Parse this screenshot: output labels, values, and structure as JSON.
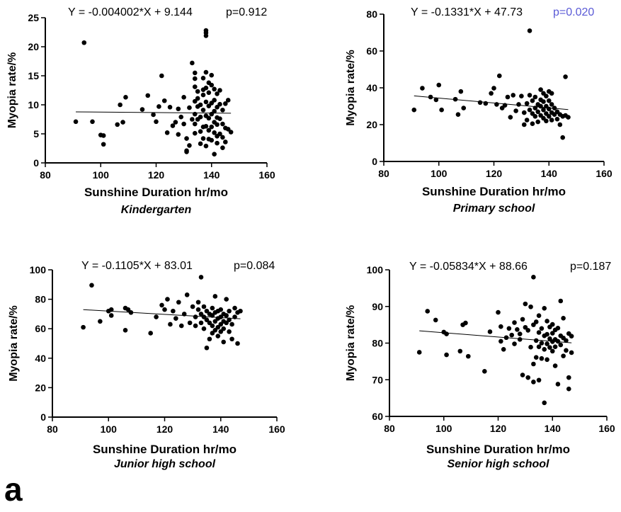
{
  "panel_label": "a",
  "colors": {
    "ink": "#000000",
    "p_highlight": "#5a5ad6"
  },
  "chart_data": [
    {
      "type": "scatter",
      "subtitle": "Kindergarten",
      "xlabel": "Sunshine Duration hr/mo",
      "ylabel": "Myopia rate/%",
      "equation": "Y = -0.004002*X + 9.144",
      "p_value": "p=0.912",
      "p_color": "#000000",
      "fit": {
        "slope": -0.004002,
        "intercept": 9.144,
        "x_range": [
          91,
          147
        ]
      },
      "xlim": [
        80,
        160
      ],
      "ylim": [
        0,
        25
      ],
      "xticks": [
        80,
        100,
        120,
        140,
        160
      ],
      "yticks": [
        0,
        5,
        10,
        15,
        20,
        25
      ],
      "points": [
        [
          91,
          7.1
        ],
        [
          94,
          20.7
        ],
        [
          97,
          7.1
        ],
        [
          100,
          4.8
        ],
        [
          101,
          4.7
        ],
        [
          101,
          3.2
        ],
        [
          106,
          6.6
        ],
        [
          107,
          10
        ],
        [
          108,
          7
        ],
        [
          109,
          11.3
        ],
        [
          115,
          9.2
        ],
        [
          117,
          11.6
        ],
        [
          119,
          8.3
        ],
        [
          120,
          7.1
        ],
        [
          121,
          9.7
        ],
        [
          122,
          15
        ],
        [
          123,
          10.7
        ],
        [
          124,
          5.2
        ],
        [
          125,
          9.6
        ],
        [
          126,
          6.4
        ],
        [
          127,
          7
        ],
        [
          128,
          9.3
        ],
        [
          128,
          4.9
        ],
        [
          129,
          7.9
        ],
        [
          130,
          6.7
        ],
        [
          130,
          11.3
        ],
        [
          131,
          2.1
        ],
        [
          131,
          4.2
        ],
        [
          131,
          1.9
        ],
        [
          132,
          9.5
        ],
        [
          132,
          3
        ],
        [
          133,
          7.5
        ],
        [
          133,
          17.2
        ],
        [
          134,
          15.5
        ],
        [
          134,
          14.5
        ],
        [
          134,
          13.1
        ],
        [
          134,
          10.6
        ],
        [
          134,
          8.4
        ],
        [
          134,
          6.7
        ],
        [
          134,
          5.1
        ],
        [
          135,
          12.3
        ],
        [
          135,
          11.1
        ],
        [
          135,
          9.7
        ],
        [
          135,
          7.5
        ],
        [
          136,
          10
        ],
        [
          136,
          7.9
        ],
        [
          136,
          5.4
        ],
        [
          136,
          3.3
        ],
        [
          137,
          14.6
        ],
        [
          137,
          12.6
        ],
        [
          137,
          11.7
        ],
        [
          137,
          9.1
        ],
        [
          137,
          6.2
        ],
        [
          137,
          4.2
        ],
        [
          138,
          22.8
        ],
        [
          138,
          22.4
        ],
        [
          138,
          21.9
        ],
        [
          138,
          15.6
        ],
        [
          138,
          12.9
        ],
        [
          138,
          10.5
        ],
        [
          138,
          8.1
        ],
        [
          138,
          6.3
        ],
        [
          138,
          2.9
        ],
        [
          139,
          13.8
        ],
        [
          139,
          12.1
        ],
        [
          139,
          9.8
        ],
        [
          139,
          7.7
        ],
        [
          139,
          5.6
        ],
        [
          139,
          4.1
        ],
        [
          140,
          15.1
        ],
        [
          140,
          13.4
        ],
        [
          140,
          10.3
        ],
        [
          140,
          8.4
        ],
        [
          140,
          6.2
        ],
        [
          140,
          3.9
        ],
        [
          141,
          12.7
        ],
        [
          141,
          10.8
        ],
        [
          141,
          8.9
        ],
        [
          141,
          7
        ],
        [
          141,
          5.2
        ],
        [
          141,
          1.5
        ],
        [
          142,
          11.9
        ],
        [
          142,
          9.6
        ],
        [
          142,
          7.8
        ],
        [
          142,
          6.6
        ],
        [
          142,
          4.6
        ],
        [
          142,
          3.4
        ],
        [
          143,
          12.5
        ],
        [
          143,
          10.1
        ],
        [
          143,
          7.6
        ],
        [
          143,
          5
        ],
        [
          144,
          9.1
        ],
        [
          144,
          6.7
        ],
        [
          144,
          4.4
        ],
        [
          144,
          2.6
        ],
        [
          145,
          10.2
        ],
        [
          145,
          6
        ],
        [
          145,
          3.6
        ],
        [
          146,
          10.8
        ],
        [
          146,
          5.8
        ],
        [
          147,
          5.3
        ]
      ]
    },
    {
      "type": "scatter",
      "subtitle": "Primary school",
      "xlabel": "Sunshine Duration hr/mo",
      "ylabel": "Myopia rate/%",
      "equation": "Y = -0.1331*X + 47.73",
      "p_value": "p=0.020",
      "p_color": "#5a5ad6",
      "fit": {
        "slope": -0.1331,
        "intercept": 47.73,
        "x_range": [
          91,
          147
        ]
      },
      "xlim": [
        80,
        160
      ],
      "ylim": [
        0,
        80
      ],
      "xticks": [
        80,
        100,
        120,
        140,
        160
      ],
      "yticks": [
        0,
        20,
        40,
        60,
        80
      ],
      "points": [
        [
          91,
          28
        ],
        [
          94,
          39.8
        ],
        [
          97,
          35
        ],
        [
          99,
          33.5
        ],
        [
          100,
          41.5
        ],
        [
          101,
          28
        ],
        [
          106,
          33.8
        ],
        [
          107,
          25.5
        ],
        [
          108,
          38
        ],
        [
          109,
          29
        ],
        [
          115,
          32
        ],
        [
          117,
          31.5
        ],
        [
          119,
          37
        ],
        [
          120,
          39.8
        ],
        [
          121,
          31
        ],
        [
          122,
          46.5
        ],
        [
          123,
          29
        ],
        [
          124,
          30.5
        ],
        [
          125,
          35
        ],
        [
          126,
          24
        ],
        [
          127,
          36
        ],
        [
          128,
          27.5
        ],
        [
          129,
          31
        ],
        [
          130,
          35.5
        ],
        [
          131,
          20
        ],
        [
          131,
          26.5
        ],
        [
          132,
          31.5
        ],
        [
          132,
          22.5
        ],
        [
          133,
          71
        ],
        [
          133,
          36
        ],
        [
          133,
          28
        ],
        [
          134,
          33
        ],
        [
          134,
          26
        ],
        [
          134,
          20.5
        ],
        [
          135,
          35
        ],
        [
          135,
          29
        ],
        [
          135,
          24.5
        ],
        [
          136,
          31
        ],
        [
          136,
          27
        ],
        [
          136,
          21.5
        ],
        [
          137,
          39
        ],
        [
          137,
          33.5
        ],
        [
          137,
          30
        ],
        [
          137,
          25
        ],
        [
          138,
          37
        ],
        [
          138,
          32.5
        ],
        [
          138,
          28
        ],
        [
          138,
          23.5
        ],
        [
          139,
          35.5
        ],
        [
          139,
          30
        ],
        [
          139,
          26
        ],
        [
          139,
          22
        ],
        [
          140,
          38
        ],
        [
          140,
          33
        ],
        [
          140,
          28.5
        ],
        [
          140,
          24.5
        ],
        [
          141,
          37
        ],
        [
          141,
          31
        ],
        [
          141,
          26.5
        ],
        [
          141,
          22.5
        ],
        [
          142,
          29
        ],
        [
          142,
          25.5
        ],
        [
          143,
          27
        ],
        [
          143,
          23
        ],
        [
          144,
          25.5
        ],
        [
          144,
          20
        ],
        [
          145,
          24.5
        ],
        [
          145,
          13
        ],
        [
          146,
          46
        ],
        [
          146,
          25
        ],
        [
          147,
          24
        ]
      ]
    },
    {
      "type": "scatter",
      "subtitle": "Junior high school",
      "xlabel": "Sunshine Duration hr/mo",
      "ylabel": "Myopia rate/%",
      "equation": "Y = -0.1105*X + 83.01",
      "p_value": "p=0.084",
      "p_color": "#000000",
      "fit": {
        "slope": -0.1105,
        "intercept": 83.01,
        "x_range": [
          91,
          147
        ]
      },
      "xlim": [
        80,
        160
      ],
      "ylim": [
        0,
        100
      ],
      "xticks": [
        80,
        100,
        120,
        140,
        160
      ],
      "yticks": [
        0,
        20,
        40,
        60,
        80,
        100
      ],
      "points": [
        [
          91,
          61
        ],
        [
          94,
          89.5
        ],
        [
          97,
          65
        ],
        [
          100,
          72
        ],
        [
          101,
          73
        ],
        [
          101,
          69
        ],
        [
          106,
          74
        ],
        [
          106,
          59
        ],
        [
          107,
          73
        ],
        [
          108,
          71
        ],
        [
          115,
          57
        ],
        [
          117,
          68
        ],
        [
          119,
          76
        ],
        [
          120,
          73
        ],
        [
          121,
          80
        ],
        [
          122,
          63
        ],
        [
          123,
          72
        ],
        [
          124,
          67
        ],
        [
          125,
          78
        ],
        [
          126,
          62
        ],
        [
          127,
          70
        ],
        [
          128,
          83
        ],
        [
          129,
          64
        ],
        [
          130,
          75
        ],
        [
          131,
          68
        ],
        [
          131,
          62
        ],
        [
          132,
          73
        ],
        [
          132,
          78
        ],
        [
          133,
          95
        ],
        [
          133,
          70
        ],
        [
          133,
          64
        ],
        [
          134,
          75
        ],
        [
          134,
          68
        ],
        [
          134,
          60
        ],
        [
          135,
          72
        ],
        [
          135,
          66
        ],
        [
          135,
          47
        ],
        [
          136,
          70
        ],
        [
          136,
          64
        ],
        [
          136,
          53
        ],
        [
          137,
          74
        ],
        [
          137,
          69
        ],
        [
          137,
          62
        ],
        [
          137,
          57
        ],
        [
          138,
          82
        ],
        [
          138,
          71
        ],
        [
          138,
          65
        ],
        [
          138,
          59
        ],
        [
          139,
          72
        ],
        [
          139,
          67
        ],
        [
          139,
          61
        ],
        [
          139,
          55
        ],
        [
          140,
          73
        ],
        [
          140,
          68
        ],
        [
          140,
          63
        ],
        [
          140,
          58
        ],
        [
          141,
          70
        ],
        [
          141,
          65
        ],
        [
          141,
          60
        ],
        [
          141,
          51
        ],
        [
          142,
          80
        ],
        [
          142,
          69
        ],
        [
          142,
          64
        ],
        [
          143,
          72
        ],
        [
          143,
          66
        ],
        [
          143,
          58
        ],
        [
          144,
          63
        ],
        [
          144,
          53
        ],
        [
          145,
          74
        ],
        [
          145,
          68
        ],
        [
          146,
          71
        ],
        [
          146,
          50
        ],
        [
          147,
          72
        ]
      ]
    },
    {
      "type": "scatter",
      "subtitle": "Senior high school",
      "xlabel": "Sunshine Duration hr/mo",
      "ylabel": "Myopia rate/%",
      "equation": "Y = -0.05834*X + 88.66",
      "p_value": "p=0.187",
      "p_color": "#000000",
      "fit": {
        "slope": -0.05834,
        "intercept": 88.66,
        "x_range": [
          91,
          147
        ]
      },
      "xlim": [
        80,
        160
      ],
      "ylim": [
        60,
        100
      ],
      "xticks": [
        80,
        100,
        120,
        140,
        160
      ],
      "yticks": [
        60,
        70,
        80,
        90,
        100
      ],
      "points": [
        [
          91,
          77.5
        ],
        [
          94,
          88.7
        ],
        [
          97,
          86.3
        ],
        [
          100,
          83
        ],
        [
          101,
          82.5
        ],
        [
          101,
          76.8
        ],
        [
          106,
          77.8
        ],
        [
          107,
          85
        ],
        [
          108,
          85.5
        ],
        [
          109,
          76.4
        ],
        [
          115,
          72.3
        ],
        [
          117,
          83.1
        ],
        [
          120,
          88.4
        ],
        [
          121,
          80.5
        ],
        [
          121,
          84.5
        ],
        [
          122,
          78.3
        ],
        [
          123,
          81.5
        ],
        [
          124,
          84
        ],
        [
          125,
          82.2
        ],
        [
          126,
          85.6
        ],
        [
          126,
          79.8
        ],
        [
          127,
          83.7
        ],
        [
          128,
          82.5
        ],
        [
          128,
          81
        ],
        [
          129,
          86.5
        ],
        [
          129,
          71.3
        ],
        [
          130,
          90.7
        ],
        [
          130,
          84.3
        ],
        [
          131,
          70.6
        ],
        [
          131,
          83.5
        ],
        [
          132,
          89.9
        ],
        [
          132,
          78.9
        ],
        [
          133,
          98
        ],
        [
          133,
          85
        ],
        [
          133,
          74.3
        ],
        [
          133,
          69.4
        ],
        [
          134,
          85.8
        ],
        [
          134,
          80.7
        ],
        [
          134,
          76.1
        ],
        [
          135,
          87.5
        ],
        [
          135,
          82.9
        ],
        [
          135,
          79
        ],
        [
          135,
          69.9
        ],
        [
          136,
          84
        ],
        [
          136,
          80
        ],
        [
          136,
          75.8
        ],
        [
          137,
          89.5
        ],
        [
          137,
          82
        ],
        [
          137,
          78.3
        ],
        [
          137,
          63.7
        ],
        [
          138,
          86
        ],
        [
          138,
          82.4
        ],
        [
          138,
          79.8
        ],
        [
          138,
          75.5
        ],
        [
          139,
          84.4
        ],
        [
          139,
          81.2
        ],
        [
          139,
          78.8
        ],
        [
          140,
          85.1
        ],
        [
          140,
          82.7
        ],
        [
          140,
          80.4
        ],
        [
          140,
          77.8
        ],
        [
          141,
          83.6
        ],
        [
          141,
          81
        ],
        [
          141,
          79
        ],
        [
          141,
          73.8
        ],
        [
          142,
          84.1
        ],
        [
          142,
          80.5
        ],
        [
          142,
          68.8
        ],
        [
          143,
          91.5
        ],
        [
          143,
          82
        ],
        [
          143,
          79.5
        ],
        [
          144,
          86.8
        ],
        [
          144,
          81.4
        ],
        [
          144,
          76.5
        ],
        [
          145,
          80.7
        ],
        [
          145,
          78
        ],
        [
          146,
          82.6
        ],
        [
          146,
          70.6
        ],
        [
          146,
          67.5
        ],
        [
          147,
          81.9
        ],
        [
          147,
          77.4
        ]
      ]
    }
  ]
}
